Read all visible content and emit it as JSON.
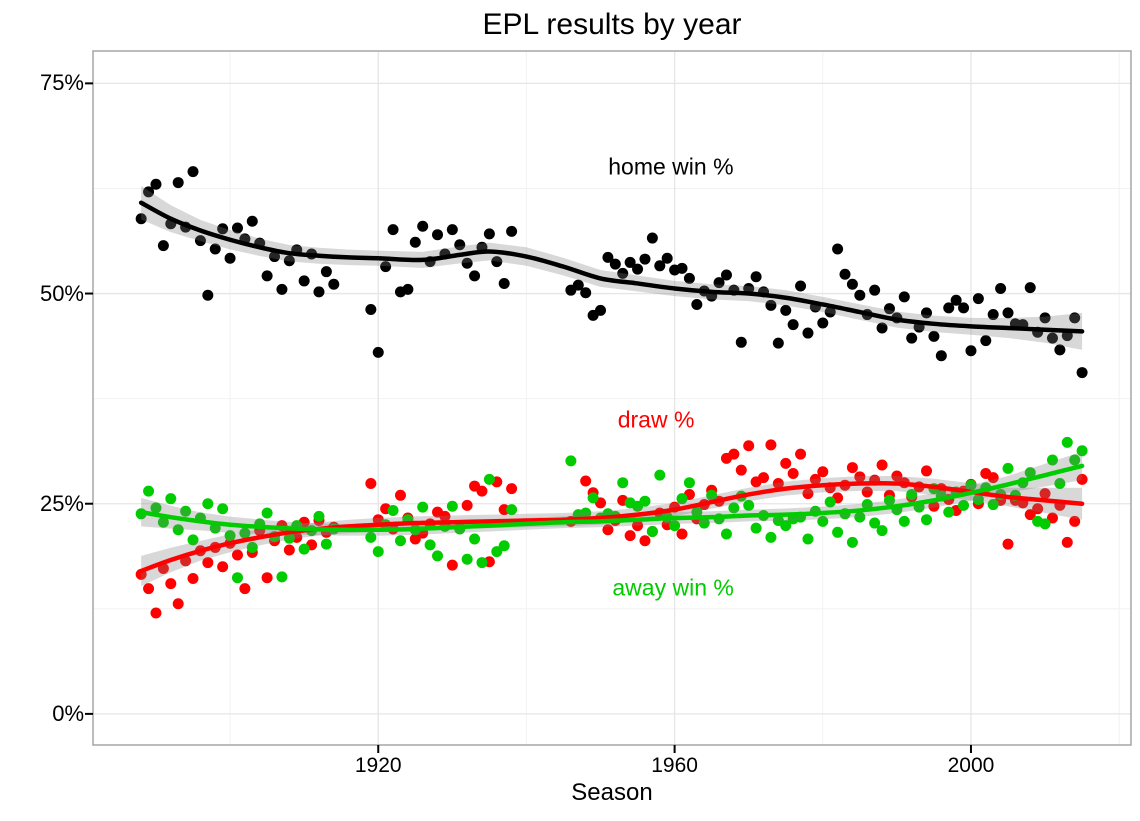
{
  "chart_data": {
    "type": "scatter",
    "title": "EPL results by year",
    "xlabel": "Season",
    "ylabel": "",
    "x_axis": {
      "lim": [
        1881.5,
        2021.6
      ],
      "major_ticks": [
        1920,
        1960,
        2000
      ],
      "tick_labels": [
        "1920",
        "1960",
        "2000"
      ],
      "minor_gridlines": [
        1900,
        1940,
        1980,
        2020
      ]
    },
    "y_axis": {
      "lim": [
        -3.7,
        78.85
      ],
      "major_ticks": [
        0,
        25,
        50,
        75
      ],
      "tick_labels": [
        "0%",
        "25%",
        "50%",
        "75%"
      ],
      "minor_gridlines": [
        12.5,
        37.5,
        62.5
      ]
    },
    "grid": {
      "major_color": "#E6E6E6",
      "minor_color": "#F2F2F2",
      "panel_border": "#A5A5A5"
    },
    "seasons": [
      1888,
      1889,
      1890,
      1891,
      1892,
      1893,
      1894,
      1895,
      1896,
      1897,
      1898,
      1899,
      1900,
      1901,
      1902,
      1903,
      1904,
      1905,
      1906,
      1907,
      1908,
      1909,
      1910,
      1911,
      1912,
      1913,
      1914,
      1919,
      1920,
      1921,
      1922,
      1923,
      1924,
      1925,
      1926,
      1927,
      1928,
      1929,
      1930,
      1931,
      1932,
      1933,
      1934,
      1935,
      1936,
      1937,
      1938,
      1946,
      1947,
      1948,
      1949,
      1950,
      1951,
      1952,
      1953,
      1954,
      1955,
      1956,
      1957,
      1958,
      1959,
      1960,
      1961,
      1962,
      1963,
      1964,
      1965,
      1966,
      1967,
      1968,
      1969,
      1970,
      1971,
      1972,
      1973,
      1974,
      1975,
      1976,
      1977,
      1978,
      1979,
      1980,
      1981,
      1982,
      1983,
      1984,
      1985,
      1986,
      1987,
      1988,
      1989,
      1990,
      1991,
      1992,
      1993,
      1994,
      1995,
      1996,
      1997,
      1998,
      1999,
      2000,
      2001,
      2002,
      2003,
      2004,
      2005,
      2006,
      2007,
      2008,
      2009,
      2010,
      2011,
      2012,
      2013,
      2014,
      2015
    ],
    "series": [
      {
        "name": "home win %",
        "color": "#000000",
        "values": [
          58.9,
          62.1,
          63.0,
          55.7,
          58.3,
          63.2,
          57.9,
          64.5,
          56.3,
          49.8,
          55.3,
          57.7,
          54.2,
          57.8,
          56.5,
          58.6,
          56.0,
          52.1,
          54.4,
          50.5,
          53.9,
          55.2,
          51.5,
          54.7,
          50.2,
          52.6,
          51.1,
          48.1,
          43.0,
          53.2,
          57.6,
          50.2,
          50.5,
          56.1,
          58.0,
          53.8,
          57.0,
          54.7,
          57.6,
          55.8,
          53.6,
          52.1,
          55.5,
          57.1,
          53.8,
          51.2,
          57.4,
          50.4,
          51.0,
          50.1,
          47.4,
          48.0,
          54.3,
          53.5,
          52.4,
          53.7,
          52.9,
          54.1,
          56.6,
          53.3,
          54.2,
          52.8,
          53.0,
          51.8,
          48.7,
          50.3,
          49.7,
          51.3,
          52.2,
          50.4,
          44.2,
          50.6,
          52.0,
          50.2,
          48.6,
          44.1,
          48.0,
          46.3,
          50.9,
          45.3,
          48.4,
          46.5,
          47.8,
          55.3,
          52.3,
          51.1,
          49.8,
          47.5,
          50.4,
          45.9,
          48.2,
          47.1,
          49.6,
          44.7,
          46.0,
          47.7,
          44.9,
          42.6,
          48.3,
          49.2,
          48.3,
          43.2,
          49.4,
          44.4,
          47.5,
          50.6,
          47.7,
          46.4,
          46.3,
          50.7,
          45.4,
          47.1,
          44.7,
          43.3,
          45.0,
          47.1,
          40.6
        ],
        "smooth": [
          [
            1888,
            60.8
          ],
          [
            1892,
            58.9
          ],
          [
            1896,
            57.5
          ],
          [
            1900,
            56.4
          ],
          [
            1904,
            55.5
          ],
          [
            1908,
            54.8
          ],
          [
            1912,
            54.5
          ],
          [
            1916,
            54.3
          ],
          [
            1920,
            54.2
          ],
          [
            1926,
            54.0
          ],
          [
            1931,
            54.6
          ],
          [
            1935,
            55.0
          ],
          [
            1940,
            54.4
          ],
          [
            1945,
            53.2
          ],
          [
            1950,
            51.8
          ],
          [
            1955,
            51.2
          ],
          [
            1960,
            50.6
          ],
          [
            1965,
            50.2
          ],
          [
            1970,
            50.0
          ],
          [
            1975,
            49.5
          ],
          [
            1980,
            48.7
          ],
          [
            1985,
            47.8
          ],
          [
            1990,
            46.9
          ],
          [
            1995,
            46.4
          ],
          [
            2000,
            46.1
          ],
          [
            2005,
            45.9
          ],
          [
            2010,
            45.7
          ],
          [
            2015,
            45.5
          ]
        ],
        "ribbon": [
          [
            1888,
            2.0
          ],
          [
            1895,
            1.3
          ],
          [
            1905,
            1.0
          ],
          [
            1920,
            0.9
          ],
          [
            1940,
            1.1
          ],
          [
            1960,
            0.9
          ],
          [
            1980,
            0.9
          ],
          [
            2000,
            1.0
          ],
          [
            2008,
            1.3
          ],
          [
            2015,
            2.2
          ]
        ]
      },
      {
        "name": "draw %",
        "color": "#FF0000",
        "values": [
          16.6,
          14.9,
          12.0,
          17.3,
          15.5,
          13.1,
          18.2,
          16.1,
          19.4,
          18.0,
          19.8,
          17.5,
          20.3,
          18.9,
          14.9,
          19.2,
          21.8,
          16.2,
          20.6,
          22.4,
          19.5,
          21.0,
          22.8,
          20.1,
          23.0,
          21.6,
          22.2,
          27.4,
          23.1,
          24.4,
          22.0,
          26.0,
          23.3,
          20.8,
          21.5,
          22.6,
          24.0,
          23.5,
          17.7,
          22.1,
          24.8,
          27.1,
          26.5,
          18.1,
          27.6,
          24.3,
          26.8,
          22.9,
          23.6,
          27.7,
          26.3,
          25.1,
          21.9,
          23.0,
          25.4,
          21.2,
          22.4,
          20.6,
          21.7,
          23.9,
          22.5,
          24.6,
          21.4,
          26.1,
          23.2,
          24.9,
          26.6,
          25.3,
          30.4,
          30.9,
          29.0,
          31.9,
          27.6,
          28.1,
          32.0,
          27.4,
          29.8,
          28.6,
          30.9,
          26.2,
          27.9,
          28.8,
          26.9,
          25.7,
          27.2,
          29.3,
          28.2,
          26.4,
          27.8,
          29.6,
          26.0,
          28.3,
          27.5,
          25.8,
          27.0,
          28.9,
          24.7,
          26.8,
          25.5,
          24.2,
          26.5,
          27.3,
          25.0,
          28.6,
          28.1,
          25.4,
          20.2,
          25.4,
          25.1,
          23.7,
          24.4,
          26.2,
          23.3,
          24.8,
          20.4,
          22.9,
          27.9
        ],
        "smooth": [
          [
            1888,
            17.0
          ],
          [
            1892,
            18.3
          ],
          [
            1896,
            19.4
          ],
          [
            1900,
            20.3
          ],
          [
            1904,
            21.0
          ],
          [
            1908,
            21.6
          ],
          [
            1912,
            22.0
          ],
          [
            1916,
            22.3
          ],
          [
            1920,
            22.5
          ],
          [
            1925,
            22.7
          ],
          [
            1930,
            22.8
          ],
          [
            1935,
            22.9
          ],
          [
            1940,
            23.0
          ],
          [
            1945,
            23.1
          ],
          [
            1950,
            23.3
          ],
          [
            1955,
            23.7
          ],
          [
            1960,
            24.3
          ],
          [
            1965,
            25.2
          ],
          [
            1970,
            26.1
          ],
          [
            1975,
            26.8
          ],
          [
            1980,
            27.2
          ],
          [
            1985,
            27.4
          ],
          [
            1990,
            27.4
          ],
          [
            1995,
            27.0
          ],
          [
            2000,
            26.4
          ],
          [
            2005,
            25.8
          ],
          [
            2010,
            25.4
          ],
          [
            2015,
            25.0
          ]
        ],
        "ribbon": [
          [
            1888,
            1.8
          ],
          [
            1895,
            1.2
          ],
          [
            1910,
            0.8
          ],
          [
            1940,
            0.8
          ],
          [
            1970,
            0.8
          ],
          [
            1990,
            0.9
          ],
          [
            2005,
            1.1
          ],
          [
            2015,
            1.9
          ]
        ]
      },
      {
        "name": "away win %",
        "color": "#00CC00",
        "values": [
          23.8,
          26.5,
          24.5,
          22.8,
          25.6,
          21.9,
          24.1,
          20.7,
          23.3,
          25.0,
          22.1,
          24.4,
          21.2,
          16.2,
          21.5,
          19.8,
          22.6,
          23.9,
          21.1,
          16.3,
          20.9,
          22.4,
          19.6,
          21.8,
          23.5,
          20.2,
          22.0,
          21.0,
          19.3,
          22.5,
          24.2,
          20.6,
          23.1,
          21.9,
          24.6,
          20.1,
          18.8,
          22.3,
          24.7,
          22.0,
          18.4,
          20.8,
          18.0,
          27.9,
          19.3,
          20.0,
          24.3,
          30.1,
          23.7,
          23.9,
          25.7,
          23.3,
          23.8,
          23.5,
          27.5,
          25.1,
          24.7,
          25.3,
          21.7,
          28.4,
          23.4,
          22.4,
          25.6,
          27.5,
          24.0,
          22.7,
          26.0,
          23.2,
          21.4,
          24.5,
          25.9,
          24.8,
          22.1,
          23.6,
          21.0,
          23.0,
          22.4,
          23.2,
          23.4,
          20.8,
          24.1,
          22.9,
          25.2,
          21.6,
          23.8,
          20.4,
          23.4,
          24.9,
          22.7,
          21.8,
          25.4,
          24.3,
          22.9,
          26.1,
          24.6,
          23.1,
          26.8,
          25.9,
          24.0,
          26.4,
          24.8,
          27.2,
          25.5,
          26.9,
          24.9,
          26.1,
          29.2,
          26.0,
          27.5,
          28.7,
          22.9,
          22.6,
          30.2,
          27.4,
          32.3,
          30.2,
          31.3
        ],
        "smooth": [
          [
            1888,
            24.0
          ],
          [
            1892,
            23.4
          ],
          [
            1896,
            22.9
          ],
          [
            1900,
            22.5
          ],
          [
            1905,
            22.2
          ],
          [
            1910,
            22.0
          ],
          [
            1915,
            21.9
          ],
          [
            1920,
            21.9
          ],
          [
            1925,
            22.0
          ],
          [
            1930,
            22.2
          ],
          [
            1935,
            22.4
          ],
          [
            1940,
            22.6
          ],
          [
            1945,
            22.8
          ],
          [
            1950,
            22.9
          ],
          [
            1955,
            23.1
          ],
          [
            1960,
            23.3
          ],
          [
            1965,
            23.4
          ],
          [
            1970,
            23.6
          ],
          [
            1975,
            23.7
          ],
          [
            1980,
            23.9
          ],
          [
            1985,
            24.2
          ],
          [
            1990,
            24.7
          ],
          [
            1995,
            25.4
          ],
          [
            2000,
            26.3
          ],
          [
            2005,
            27.3
          ],
          [
            2010,
            28.4
          ],
          [
            2015,
            29.5
          ]
        ],
        "ribbon": [
          [
            1888,
            1.7
          ],
          [
            1895,
            1.1
          ],
          [
            1910,
            0.7
          ],
          [
            1940,
            0.7
          ],
          [
            1970,
            0.7
          ],
          [
            1990,
            0.8
          ],
          [
            2005,
            1.0
          ],
          [
            2015,
            1.7
          ]
        ]
      }
    ],
    "annotations": [
      {
        "text": "home win %",
        "color": "#000000",
        "x": 1959.5,
        "y": 65.0
      },
      {
        "text": "draw %",
        "color": "#FF0000",
        "x": 1957.5,
        "y": 35.0
      },
      {
        "text": "away win %",
        "color": "#00CC00",
        "x": 1959.8,
        "y": 15.0
      }
    ],
    "ribbon_fill": "rgba(127,127,127,0.30)"
  }
}
